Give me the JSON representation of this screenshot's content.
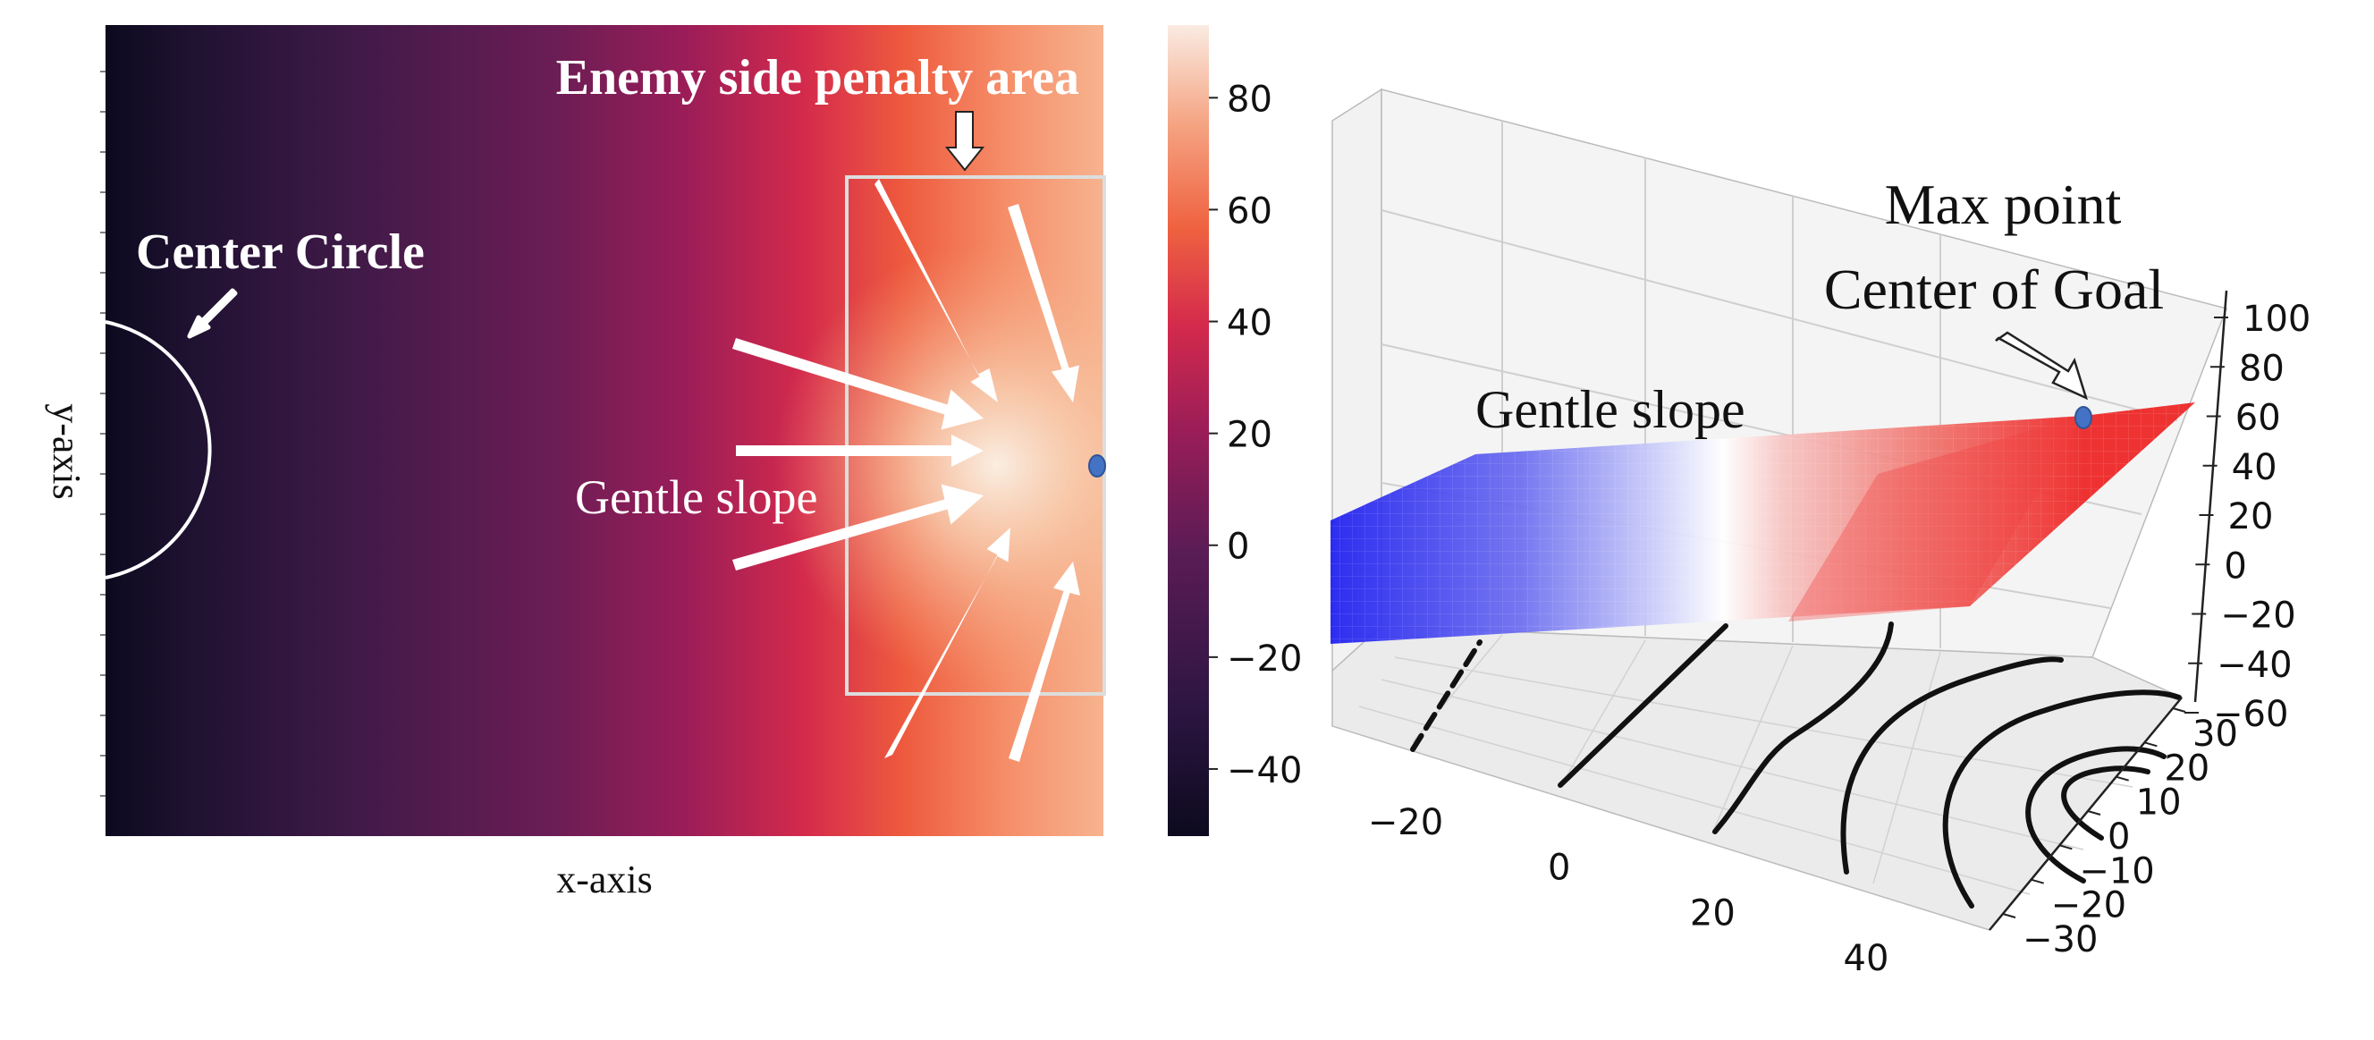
{
  "chart_data": [
    {
      "type": "heatmap",
      "xlabel": "x-axis",
      "ylabel": "y-axis",
      "colorbar": {
        "ticks": [
          80,
          60,
          40,
          20,
          0,
          -20,
          -40
        ],
        "range": [
          -52,
          93
        ],
        "colormap": "rocket"
      },
      "annotations": {
        "penalty_area": "Enemy side penalty area",
        "center_circle": "Center Circle",
        "slope": "Gentle slope"
      },
      "max_point_color": "#4472c4"
    },
    {
      "type": "surface",
      "x_ticks": [
        -20,
        0,
        20,
        40
      ],
      "y_ticks": [
        30,
        20,
        10,
        0,
        -10,
        -20,
        -30
      ],
      "z_ticks": [
        100,
        80,
        60,
        40,
        20,
        0,
        -20,
        -40,
        -60
      ],
      "colormap": "bwr",
      "contours": true,
      "annotations": {
        "max_point_line1": "Max point",
        "max_point_line2": "Center of Goal",
        "slope": "Gentle slope"
      },
      "max_point_color": "#4472c4"
    }
  ]
}
